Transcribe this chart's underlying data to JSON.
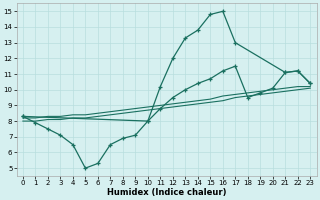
{
  "xlabel": "Humidex (Indice chaleur)",
  "background_color": "#d6f0f0",
  "grid_color": "#b8dede",
  "line_color": "#1a7060",
  "xlim": [
    -0.5,
    23.5
  ],
  "ylim": [
    4.5,
    15.5
  ],
  "yticks": [
    5,
    6,
    7,
    8,
    9,
    10,
    11,
    12,
    13,
    14,
    15
  ],
  "xticks": [
    0,
    1,
    2,
    3,
    4,
    5,
    6,
    7,
    8,
    9,
    10,
    11,
    12,
    13,
    14,
    15,
    16,
    17,
    18,
    19,
    20,
    21,
    22,
    23
  ],
  "curve1_x": [
    0,
    1,
    2,
    3,
    4,
    5,
    6,
    7,
    8,
    9,
    10,
    11,
    12,
    13,
    14,
    15,
    16,
    17,
    21,
    22,
    23
  ],
  "curve1_y": [
    8.3,
    7.9,
    7.5,
    7.1,
    6.5,
    5.0,
    5.3,
    6.5,
    6.9,
    7.1,
    8.0,
    10.2,
    12.0,
    13.3,
    13.8,
    14.8,
    15.0,
    13.0,
    11.1,
    11.2,
    10.4
  ],
  "curve2_x": [
    0,
    10,
    11,
    12,
    13,
    14,
    15,
    16,
    17,
    18,
    19,
    20,
    21,
    22,
    23
  ],
  "curve2_y": [
    8.3,
    8.0,
    8.8,
    9.5,
    10.0,
    10.4,
    10.7,
    11.2,
    11.5,
    9.5,
    9.8,
    10.1,
    11.1,
    11.2,
    10.4
  ],
  "curve3_x": [
    0,
    1,
    2,
    3,
    4,
    5,
    6,
    7,
    8,
    9,
    10,
    11,
    12,
    13,
    14,
    15,
    16,
    17,
    18,
    19,
    20,
    21,
    22,
    23
  ],
  "curve3_y": [
    8.2,
    8.2,
    8.3,
    8.3,
    8.4,
    8.4,
    8.5,
    8.6,
    8.7,
    8.8,
    8.9,
    9.0,
    9.1,
    9.2,
    9.3,
    9.4,
    9.6,
    9.7,
    9.8,
    9.9,
    10.0,
    10.1,
    10.2,
    10.2
  ],
  "curve4_x": [
    0,
    1,
    2,
    3,
    4,
    5,
    6,
    7,
    8,
    9,
    10,
    11,
    12,
    13,
    14,
    15,
    16,
    17,
    18,
    19,
    20,
    21,
    22,
    23
  ],
  "curve4_y": [
    8.0,
    8.0,
    8.1,
    8.1,
    8.2,
    8.2,
    8.3,
    8.4,
    8.5,
    8.6,
    8.7,
    8.8,
    8.9,
    9.0,
    9.1,
    9.2,
    9.3,
    9.5,
    9.6,
    9.7,
    9.8,
    9.9,
    10.0,
    10.1
  ]
}
